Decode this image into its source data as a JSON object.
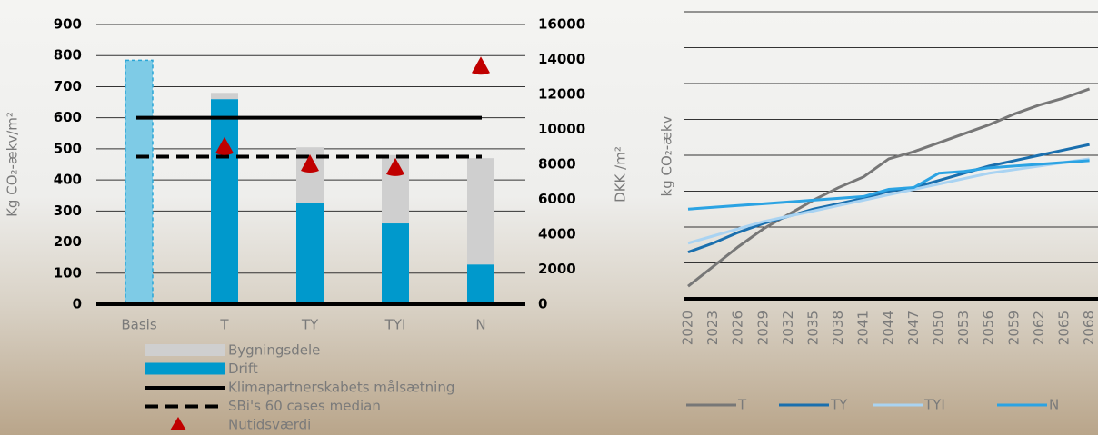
{
  "chart_data": [
    {
      "type": "bar",
      "y_label": "Kg CO₂-ækv/m²",
      "y2_label": "DKK /m²",
      "categories": [
        "Basis",
        "T",
        "TY",
        "TYI",
        "N"
      ],
      "series": [
        {
          "name": "Drift",
          "color": "#0099cc",
          "colors": [
            "#7ecbe6",
            "#0099cc",
            "#0099cc",
            "#0099cc",
            "#0099cc"
          ],
          "values": [
            785,
            660,
            325,
            260,
            128
          ]
        },
        {
          "name": "Bygningsdele",
          "color": "#cfcfcf",
          "values": [
            null,
            20,
            180,
            220,
            342
          ]
        }
      ],
      "reference_lines": [
        {
          "name": "Klimapartnerskabets målsætning",
          "value": 600,
          "color": "#000000",
          "dashed": false
        },
        {
          "name": "SBi's 60 cases median",
          "value": 475,
          "color": "#000000",
          "dashed": true
        }
      ],
      "markers": {
        "name": "Nutidsværdi",
        "color": "#c00000",
        "axis": "y2",
        "values": [
          null,
          9000,
          8000,
          7800,
          13600
        ]
      },
      "ylim": [
        0,
        900
      ],
      "yticks": [
        0,
        100,
        200,
        300,
        400,
        500,
        600,
        700,
        800,
        900
      ],
      "y2lim": [
        0,
        16000
      ],
      "y2ticks": [
        0,
        2000,
        4000,
        6000,
        8000,
        10000,
        12000,
        14000,
        16000
      ],
      "grid": true
    },
    {
      "type": "line",
      "y_label": "kg CO₂-ækv",
      "categories": [
        "2020",
        "2023",
        "2026",
        "2029",
        "2032",
        "2035",
        "2038",
        "2041",
        "2044",
        "2047",
        "2050",
        "2053",
        "2056",
        "2059",
        "2062",
        "2065",
        "2068"
      ],
      "series": [
        {
          "name": "T",
          "color": "#777777",
          "values": [
            0.35,
            0.9,
            1.45,
            1.95,
            2.35,
            2.75,
            3.1,
            3.4,
            3.9,
            4.1,
            4.35,
            4.6,
            4.85,
            5.15,
            5.4,
            5.6,
            5.85
          ]
        },
        {
          "name": "TY",
          "color": "#1a6fae",
          "values": [
            1.3,
            1.55,
            1.85,
            2.1,
            2.3,
            2.5,
            2.65,
            2.8,
            3.0,
            3.1,
            3.3,
            3.5,
            3.7,
            3.85,
            4.0,
            4.15,
            4.3
          ]
        },
        {
          "name": "TYI",
          "color": "#a9d3f2",
          "values": [
            1.55,
            1.75,
            1.95,
            2.15,
            2.3,
            2.45,
            2.6,
            2.75,
            2.9,
            3.05,
            3.2,
            3.35,
            3.5,
            3.6,
            3.7,
            3.8,
            3.9
          ]
        },
        {
          "name": "N",
          "color": "#2ba3e3",
          "values": [
            2.5,
            2.55,
            2.6,
            2.65,
            2.7,
            2.75,
            2.8,
            2.85,
            3.05,
            3.1,
            3.5,
            3.55,
            3.65,
            3.7,
            3.75,
            3.8,
            3.85
          ]
        }
      ],
      "ylim": [
        0,
        8
      ],
      "grid_lines": [
        1,
        2,
        3,
        4,
        5,
        6,
        7,
        8
      ],
      "grid": true
    }
  ]
}
